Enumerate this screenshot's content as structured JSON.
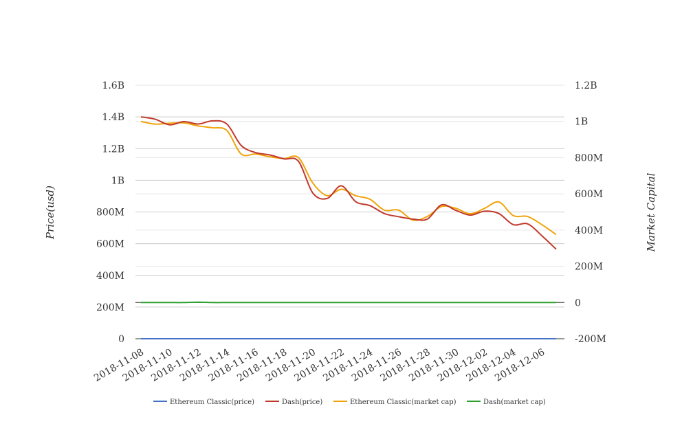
{
  "chart_data": {
    "type": "line",
    "title": "",
    "ylabel_left": "Price(usd)",
    "ylabel_right": "Market Capital",
    "y_left": {
      "range": [
        0,
        1600000000
      ],
      "ticks": [
        0,
        200000000,
        400000000,
        600000000,
        800000000,
        1000000000,
        1200000000,
        1400000000,
        1600000000
      ],
      "tick_labels": [
        "0",
        "200M",
        "400M",
        "600M",
        "800M",
        "1B",
        "1.2B",
        "1.4B",
        "1.6B"
      ]
    },
    "y_right": {
      "range": [
        -200000000,
        1200000000
      ],
      "ticks": [
        -200000000,
        0,
        200000000,
        400000000,
        600000000,
        800000000,
        1000000000,
        1200000000
      ],
      "tick_labels": [
        "-200M",
        "0",
        "200M",
        "400M",
        "600M",
        "800M",
        "1B",
        "1.2B"
      ]
    },
    "x": [
      "2018-11-08",
      "2018-11-09",
      "2018-11-10",
      "2018-11-11",
      "2018-11-12",
      "2018-11-13",
      "2018-11-14",
      "2018-11-15",
      "2018-11-16",
      "2018-11-17",
      "2018-11-18",
      "2018-11-19",
      "2018-11-20",
      "2018-11-21",
      "2018-11-22",
      "2018-11-23",
      "2018-11-24",
      "2018-11-25",
      "2018-11-26",
      "2018-11-27",
      "2018-11-28",
      "2018-11-29",
      "2018-11-30",
      "2018-12-01",
      "2018-12-02",
      "2018-12-03",
      "2018-12-04",
      "2018-12-05",
      "2018-12-06",
      "2018-12-07"
    ],
    "x_tick_labels": [
      "2018-11-08",
      "2018-11-10",
      "2018-11-12",
      "2018-11-14",
      "2018-11-16",
      "2018-11-18",
      "2018-11-20",
      "2018-11-22",
      "2018-11-24",
      "2018-11-26",
      "2018-11-28",
      "2018-11-30",
      "2018-12-02",
      "2018-12-04",
      "2018-12-06"
    ],
    "grid": true,
    "legend_position": "bottom",
    "series": [
      {
        "name": "Ethereum Classic(price)",
        "axis": "left",
        "color": "#4472c4",
        "values": [
          10,
          10,
          10,
          10,
          10,
          10,
          9,
          9,
          9,
          9,
          9,
          9,
          8,
          8,
          8,
          8,
          8,
          8,
          8,
          8,
          8,
          8,
          8,
          8,
          8,
          8,
          7,
          7,
          7,
          6
        ]
      },
      {
        "name": "Dash(price)",
        "axis": "left",
        "color": "#c0392b",
        "values": [
          1400000000,
          1385000000,
          1350000000,
          1370000000,
          1355000000,
          1375000000,
          1355000000,
          1220000000,
          1175000000,
          1160000000,
          1135000000,
          1120000000,
          920000000,
          885000000,
          965000000,
          865000000,
          840000000,
          790000000,
          770000000,
          755000000,
          755000000,
          845000000,
          810000000,
          780000000,
          805000000,
          790000000,
          720000000,
          725000000,
          650000000,
          565000000
        ]
      },
      {
        "name": "Ethereum Classic(market cap)",
        "axis": "right",
        "color": "#f0a30a",
        "values": [
          1000000000,
          985000000,
          990000000,
          992000000,
          975000000,
          965000000,
          950000000,
          820000000,
          820000000,
          805000000,
          795000000,
          800000000,
          660000000,
          590000000,
          625000000,
          590000000,
          570000000,
          510000000,
          510000000,
          455000000,
          475000000,
          530000000,
          520000000,
          490000000,
          520000000,
          555000000,
          480000000,
          475000000,
          430000000,
          375000000
        ]
      },
      {
        "name": "Dash(market cap)",
        "axis": "right",
        "color": "#2ca02c",
        "values": [
          0,
          0,
          0,
          0,
          2000000,
          0,
          0,
          0,
          0,
          0,
          0,
          0,
          0,
          0,
          0,
          0,
          0,
          0,
          0,
          0,
          0,
          0,
          0,
          0,
          0,
          0,
          0,
          0,
          0,
          0
        ]
      }
    ]
  }
}
